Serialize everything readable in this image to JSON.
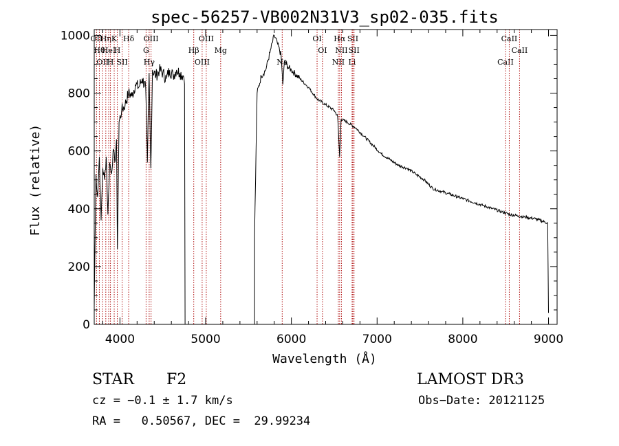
{
  "chart_data": {
    "type": "line",
    "title": "spec-56257-VB002N31V3_sp02-035.fits",
    "xlabel": "Wavelength (Å)",
    "ylabel": "Flux (relative)",
    "xlim": [
      3700,
      9100
    ],
    "ylim": [
      0,
      1020
    ],
    "xticks": [
      4000,
      5000,
      6000,
      7000,
      8000,
      9000
    ],
    "yticks": [
      0,
      200,
      400,
      600,
      800,
      1000
    ],
    "gap": [
      4760,
      5570
    ],
    "series": [
      {
        "name": "flux",
        "x": [
          3700,
          3720,
          3740,
          3760,
          3780,
          3800,
          3820,
          3840,
          3860,
          3880,
          3900,
          3920,
          3940,
          3960,
          3970,
          3990,
          4020,
          4060,
          4100,
          4140,
          4180,
          4220,
          4260,
          4300,
          4320,
          4340,
          4360,
          4380,
          4420,
          4460,
          4500,
          4540,
          4580,
          4620,
          4660,
          4700,
          4740,
          4760,
          5570,
          5600,
          5650,
          5700,
          5750,
          5800,
          5840,
          5880,
          5900,
          5920,
          5960,
          6000,
          6100,
          6200,
          6300,
          6400,
          6500,
          6540,
          6563,
          6580,
          6650,
          6750,
          6850,
          6950,
          7050,
          7150,
          7250,
          7350,
          7450,
          7550,
          7650,
          7750,
          7850,
          7950,
          8050,
          8150,
          8250,
          8350,
          8450,
          8550,
          8650,
          8750,
          8850,
          8950,
          8990,
          9000
        ],
        "values": [
          60,
          520,
          440,
          580,
          360,
          540,
          500,
          580,
          380,
          560,
          520,
          600,
          560,
          640,
          260,
          700,
          740,
          760,
          800,
          790,
          830,
          820,
          850,
          820,
          560,
          870,
          540,
          880,
          860,
          880,
          870,
          850,
          880,
          860,
          880,
          870,
          860,
          850,
          300,
          800,
          860,
          880,
          940,
          1000,
          970,
          930,
          830,
          910,
          890,
          880,
          850,
          820,
          780,
          760,
          740,
          720,
          580,
          710,
          700,
          680,
          650,
          620,
          590,
          570,
          550,
          540,
          520,
          500,
          470,
          460,
          450,
          440,
          430,
          420,
          410,
          400,
          390,
          380,
          375,
          370,
          365,
          355,
          350,
          40
        ]
      }
    ],
    "lines": [
      {
        "wl": 3727,
        "label": "OII"
      },
      {
        "wl": 3760,
        "label": "Hθ"
      },
      {
        "wl": 3798,
        "label": "OII"
      },
      {
        "wl": 3835,
        "label": "Hη"
      },
      {
        "wl": 3869,
        "label": "HeI"
      },
      {
        "wl": 3889,
        "label": "H"
      },
      {
        "wl": 3933,
        "label": "K"
      },
      {
        "wl": 3969,
        "label": "H"
      },
      {
        "wl": 4026,
        "label": "SII"
      },
      {
        "wl": 4102,
        "label": "Hδ"
      },
      {
        "wl": 4305,
        "label": "G"
      },
      {
        "wl": 4341,
        "label": "Hγ"
      },
      {
        "wl": 4363,
        "label": "OIII"
      },
      {
        "wl": 4861,
        "label": "Hβ"
      },
      {
        "wl": 4959,
        "label": "OIII"
      },
      {
        "wl": 5007,
        "label": "OIII"
      },
      {
        "wl": 5175,
        "label": "Mg"
      },
      {
        "wl": 5893,
        "label": "Na"
      },
      {
        "wl": 6300,
        "label": "OI"
      },
      {
        "wl": 6363,
        "label": "OI"
      },
      {
        "wl": 6548,
        "label": "NII"
      },
      {
        "wl": 6563,
        "label": "Hα"
      },
      {
        "wl": 6584,
        "label": "NII"
      },
      {
        "wl": 6708,
        "label": "Li"
      },
      {
        "wl": 6717,
        "label": "SII"
      },
      {
        "wl": 6731,
        "label": "SII"
      },
      {
        "wl": 8498,
        "label": "CaII"
      },
      {
        "wl": 8542,
        "label": "CaII"
      },
      {
        "wl": 8662,
        "label": "CaII"
      }
    ]
  },
  "info": {
    "object_class": "STAR",
    "subclass": "F2",
    "survey": "LAMOST DR3",
    "cz_line": "cz = −0.1 ± 1.7 km/s",
    "obs_date_line": "Obs−Date: 20121125",
    "coords_line": "RA =   0.50567, DEC =  29.99234"
  }
}
